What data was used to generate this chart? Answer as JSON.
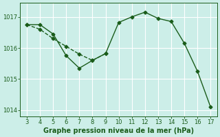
{
  "xlabel": "Graphe pression niveau de la mer (hPa)",
  "background_color": "#cceee8",
  "line_color": "#1a5c1a",
  "grid_color": "#ffffff",
  "x_solid": [
    3,
    4,
    5,
    6,
    7,
    8,
    9,
    10,
    11,
    12,
    13,
    14,
    15,
    16,
    17
  ],
  "y_solid": [
    1016.75,
    1016.75,
    1016.45,
    1015.75,
    1015.35,
    1015.6,
    1015.82,
    1016.82,
    1017.0,
    1017.15,
    1016.95,
    1016.85,
    1016.15,
    1015.25,
    1014.1
  ],
  "x_dashed": [
    3,
    4,
    5,
    6,
    7,
    8,
    9
  ],
  "y_dashed": [
    1016.75,
    1016.6,
    1016.3,
    1016.05,
    1015.8,
    1015.6,
    1015.82
  ],
  "ylim": [
    1013.8,
    1017.45
  ],
  "xlim": [
    2.5,
    17.5
  ],
  "yticks": [
    1014,
    1015,
    1016,
    1017
  ],
  "xticks": [
    3,
    4,
    5,
    6,
    7,
    8,
    9,
    10,
    11,
    12,
    13,
    14,
    15,
    16,
    17
  ],
  "marker": "D",
  "marker_size": 2.5,
  "line_width": 1.0,
  "xlabel_fontsize": 7.0,
  "tick_fontsize": 6.0
}
